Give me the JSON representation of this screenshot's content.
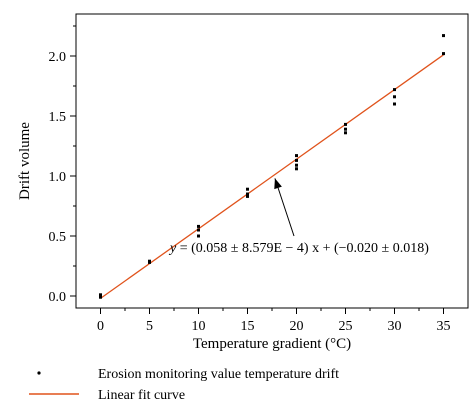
{
  "chart_data": {
    "type": "scatter",
    "xlabel": "Temperature gradient (°C)",
    "ylabel": "Drift volume",
    "xlim": [
      -2.5,
      37.5
    ],
    "ylim": [
      -0.1,
      2.35
    ],
    "xticks": [
      0,
      5,
      10,
      15,
      20,
      25,
      30,
      35
    ],
    "yticks": [
      0.0,
      0.5,
      1.0,
      1.5,
      2.0
    ],
    "ytick_labels": [
      "0.0",
      "0.5",
      "1.0",
      "1.5",
      "2.0"
    ],
    "grid": false,
    "legend_position": "bottom-left",
    "series": [
      {
        "name": "Erosion monitoring value temperature drift",
        "kind": "scatter",
        "color": "#000000",
        "points": [
          [
            0,
            0.0
          ],
          [
            0,
            -0.01
          ],
          [
            0,
            0.01
          ],
          [
            5,
            0.29
          ],
          [
            5,
            0.28
          ],
          [
            10,
            0.58
          ],
          [
            10,
            0.55
          ],
          [
            10,
            0.5
          ],
          [
            15,
            0.89
          ],
          [
            15,
            0.85
          ],
          [
            15,
            0.83
          ],
          [
            20,
            1.17
          ],
          [
            20,
            1.13
          ],
          [
            20,
            1.09
          ],
          [
            20,
            1.06
          ],
          [
            25,
            1.43
          ],
          [
            25,
            1.39
          ],
          [
            25,
            1.36
          ],
          [
            30,
            1.72
          ],
          [
            30,
            1.66
          ],
          [
            30,
            1.6
          ],
          [
            35,
            2.17
          ],
          [
            35,
            2.02
          ]
        ]
      },
      {
        "name": "Linear fit curve",
        "kind": "line",
        "color": "#e0531c",
        "slope": 0.058,
        "intercept": -0.02,
        "x_range": [
          0,
          35
        ]
      }
    ],
    "annotation": {
      "text_prefix": "y",
      "text": " = (0.058 ± 8.579E − 4) x + (−0.020 ± 0.018)",
      "arrow_to": [
        17.8,
        0.98
      ]
    }
  }
}
